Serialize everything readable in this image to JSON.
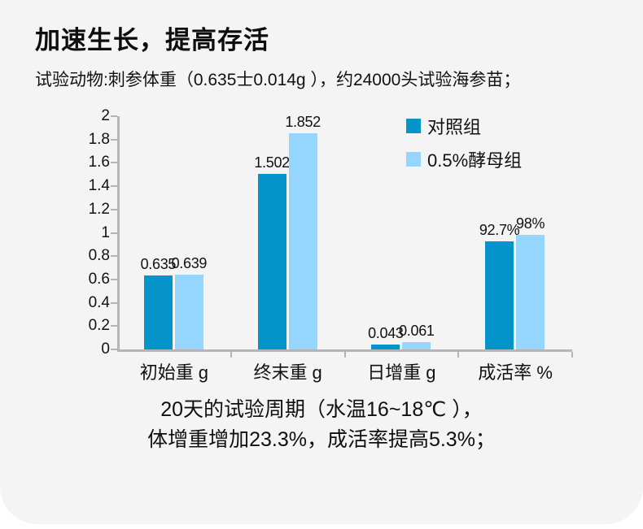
{
  "page": {
    "title": "加速生长，提高存活",
    "subtitle": "试验动物:刺参体重（0.635士0.014g ），约24000头试验海参苗；",
    "footnote_line1": "20天的试验周期（水温16~18℃ ），",
    "footnote_line2": "体增重增加23.3%，成活率提高5.3%；"
  },
  "colors": {
    "card_background": "#f4f4f4",
    "page_background": "#ffffff",
    "axis": "#b5b5b8",
    "text": "#141414",
    "series_control": "#0494c9",
    "series_yeast": "#94d6fd"
  },
  "chart_data": {
    "type": "bar",
    "categories": [
      "初始重 g",
      "终末重 g",
      "日增重 g",
      "成活率 %"
    ],
    "series": [
      {
        "name": "对照组",
        "color": "#0494c9",
        "values": [
          0.635,
          1.502,
          0.043,
          0.927
        ],
        "labels": [
          "0.635",
          "1.502",
          "0.043",
          "92.7%"
        ]
      },
      {
        "name": "0.5%酵母组",
        "color": "#94d6fd",
        "values": [
          0.639,
          1.852,
          0.061,
          0.98
        ],
        "labels": [
          "0.639",
          "1.852",
          "0.061",
          "98%"
        ]
      }
    ],
    "ylim": [
      0,
      2
    ],
    "ytick_step": 0.2,
    "ytick_labels": [
      "2",
      "1.8",
      "1.6",
      "1.4",
      "1.2",
      "1",
      "0.8",
      "0.6",
      "0.4",
      "0.2",
      "0"
    ],
    "xlabel": "",
    "ylabel": "",
    "grid": false,
    "legend_position": "top-right"
  }
}
